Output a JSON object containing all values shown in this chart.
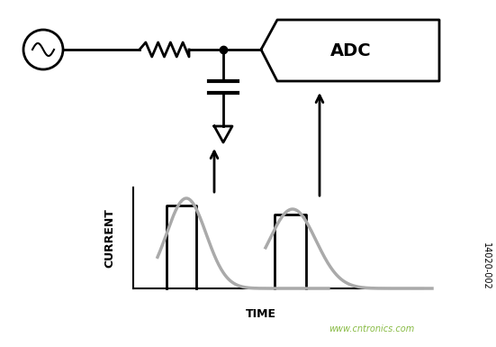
{
  "bg_color": "#ffffff",
  "fig_width": 5.51,
  "fig_height": 3.85,
  "dpi": 100,
  "adc_text": "ADC",
  "watermark": "www.cntronics.com",
  "id_text": "14020-002",
  "current_label": "CURRENT",
  "time_label": "TIME",
  "color_main": "#000000",
  "color_gray": "#aaaaaa",
  "color_watermark": "#88bb44"
}
